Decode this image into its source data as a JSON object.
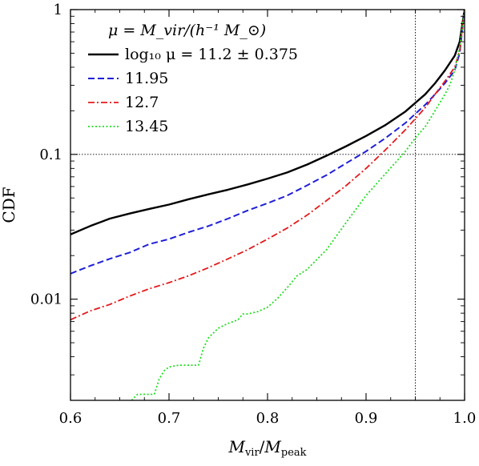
{
  "chart_data": {
    "type": "line",
    "xlabel": "M_vir/M_peak",
    "ylabel": "CDF",
    "xscale": "linear",
    "yscale": "log",
    "xlim": [
      0.6,
      1.0
    ],
    "ylim": [
      0.002,
      1
    ],
    "x_ticks": [
      0.6,
      0.7,
      0.8,
      0.9,
      1.0
    ],
    "x_tick_labels": [
      "0.6",
      "0.7",
      "0.8",
      "0.9",
      "1.0"
    ],
    "y_ticks": [
      0.01,
      0.1,
      1
    ],
    "y_tick_labels": [
      "0.01",
      "0.1",
      "1"
    ],
    "reference_lines": {
      "vertical_x": 0.95,
      "horizontal_y": 0.1
    },
    "legend": {
      "placement": "top-left",
      "header": "μ = M_vir/(h⁻¹ M_⊙)",
      "entries": [
        "log₁₀ μ = 11.2 ± 0.375",
        "11.95",
        "12.7",
        "13.45"
      ]
    },
    "series": [
      {
        "name": "log₁₀ μ = 11.2 ± 0.375",
        "color": "#000000",
        "style": "solid",
        "x": [
          0.6,
          0.62,
          0.64,
          0.66,
          0.68,
          0.7,
          0.72,
          0.74,
          0.76,
          0.78,
          0.8,
          0.82,
          0.84,
          0.86,
          0.88,
          0.9,
          0.92,
          0.94,
          0.96,
          0.97,
          0.98,
          0.99,
          0.995,
          1.0
        ],
        "y": [
          0.028,
          0.032,
          0.036,
          0.039,
          0.042,
          0.045,
          0.049,
          0.053,
          0.057,
          0.062,
          0.068,
          0.075,
          0.085,
          0.098,
          0.114,
          0.134,
          0.16,
          0.198,
          0.26,
          0.31,
          0.38,
          0.48,
          0.6,
          1.0
        ]
      },
      {
        "name": "11.95",
        "color": "#1f1fd8",
        "style": "dashed",
        "x": [
          0.6,
          0.62,
          0.64,
          0.66,
          0.68,
          0.7,
          0.72,
          0.74,
          0.76,
          0.78,
          0.8,
          0.82,
          0.84,
          0.86,
          0.88,
          0.9,
          0.92,
          0.94,
          0.96,
          0.97,
          0.98,
          0.99,
          0.995,
          1.0
        ],
        "y": [
          0.015,
          0.017,
          0.019,
          0.021,
          0.024,
          0.026,
          0.029,
          0.032,
          0.036,
          0.041,
          0.046,
          0.052,
          0.061,
          0.072,
          0.087,
          0.105,
          0.13,
          0.165,
          0.22,
          0.26,
          0.31,
          0.38,
          0.5,
          1.0
        ]
      },
      {
        "name": "12.7",
        "color": "#e41a1c",
        "style": "dashdot",
        "x": [
          0.6,
          0.62,
          0.64,
          0.66,
          0.68,
          0.7,
          0.72,
          0.74,
          0.76,
          0.78,
          0.8,
          0.82,
          0.84,
          0.86,
          0.88,
          0.9,
          0.92,
          0.94,
          0.96,
          0.97,
          0.98,
          0.99,
          0.995,
          1.0
        ],
        "y": [
          0.0072,
          0.0083,
          0.0092,
          0.0105,
          0.0118,
          0.013,
          0.0145,
          0.0165,
          0.019,
          0.022,
          0.026,
          0.031,
          0.038,
          0.048,
          0.061,
          0.08,
          0.108,
          0.148,
          0.21,
          0.26,
          0.32,
          0.4,
          0.52,
          1.0
        ]
      },
      {
        "name": "13.45",
        "color": "#22dd22",
        "style": "dotted",
        "x": [
          0.662,
          0.668,
          0.675,
          0.68,
          0.685,
          0.69,
          0.695,
          0.7,
          0.71,
          0.72,
          0.73,
          0.735,
          0.74,
          0.75,
          0.76,
          0.77,
          0.775,
          0.78,
          0.79,
          0.8,
          0.81,
          0.82,
          0.83,
          0.84,
          0.86,
          0.88,
          0.9,
          0.92,
          0.94,
          0.95,
          0.96,
          0.97,
          0.98,
          0.985,
          0.99,
          0.995,
          1.0
        ],
        "y": [
          0.002,
          0.0022,
          0.0022,
          0.0022,
          0.0022,
          0.0028,
          0.0032,
          0.0034,
          0.0035,
          0.0035,
          0.0035,
          0.0046,
          0.0054,
          0.0063,
          0.0068,
          0.0072,
          0.0079,
          0.0079,
          0.0082,
          0.0088,
          0.0101,
          0.012,
          0.0145,
          0.016,
          0.022,
          0.034,
          0.052,
          0.074,
          0.105,
          0.13,
          0.155,
          0.2,
          0.26,
          0.3,
          0.38,
          0.55,
          1.0
        ]
      }
    ]
  }
}
